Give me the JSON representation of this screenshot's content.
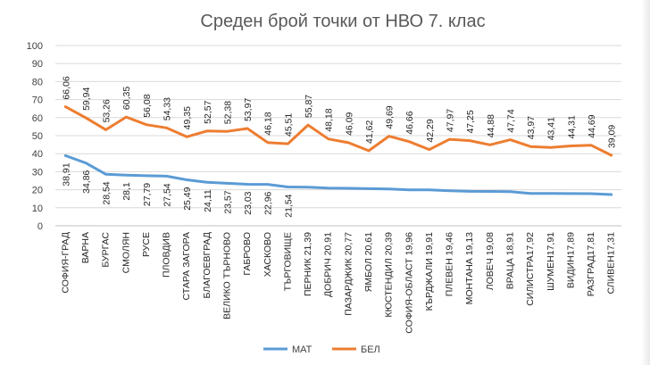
{
  "chart_data": {
    "type": "line",
    "title": "Среден брой точки от НВО 7. клас",
    "categories": [
      "СОФИЯ-ГРАД",
      "ВАРНА",
      "БУРГАС",
      "СМОЛЯН",
      "РУСЕ",
      "ПЛОВДИВ",
      "СТАРА ЗАГОРА",
      "БЛАГОЕВГРАД",
      "ВЕЛИКО ТЪРНОВО",
      "ГАБРОВО",
      "ХАСКОВО",
      "ТЪРГОВИЩЕ",
      "ПЕРНИК",
      "ДОБРИЧ",
      "ПАЗАРДЖИК",
      "ЯМБОЛ",
      "КЮСТЕНДИЛ",
      "СОФИЯ-ОБЛАСТ",
      "КЪРДЖАЛИ",
      "ПЛЕВЕН",
      "МОНТАНА",
      "ЛОВЕЧ",
      "ВРАЦА",
      "СИЛИСТРА",
      "ШУМЕН",
      "ВИДИН",
      "РАЗГРАД",
      "СЛИВЕН"
    ],
    "category_labels": [
      "СОФИЯ-ГРАД",
      "ВАРНА",
      "БУРГАС",
      "СМОЛЯН",
      "РУСЕ",
      "ПЛОВДИВ",
      "СТАРА ЗАГОРА",
      "БЛАГОЕВГРАД",
      "ВЕЛИКО ТЪРНОВО",
      "ГАБРОВО",
      "ХАСКОВО",
      "ТЪРГОВИЩЕ",
      "ПЕРНИК 21,39",
      "ДОБРИЧ 20,91",
      "ПАЗАРДЖИК 20,77",
      "ЯМБОЛ 20,61",
      "КЮСТЕНДИЛ 20,39",
      "СОФИЯ-ОБЛАСТ 19,96",
      "КЪРДЖАЛИ 19,91",
      "ПЛЕВЕН 19,46",
      "МОНТАНА 19,13",
      "ЛОВЕЧ 19,08",
      "ВРАЦА 18,91",
      "СИЛИСТРА17,92",
      "ШУМЕН17,91",
      "ВИДИН17,89",
      "РАЗГРАД17,81",
      "СЛИВЕН17,31"
    ],
    "series": [
      {
        "name": "МАТ",
        "color": "#5b9bd5",
        "values": [
          38.91,
          34.86,
          28.54,
          28.1,
          27.79,
          27.54,
          25.49,
          24.11,
          23.57,
          23.03,
          22.96,
          21.54,
          21.39,
          20.91,
          20.77,
          20.61,
          20.39,
          19.96,
          19.91,
          19.46,
          19.13,
          19.08,
          18.91,
          17.92,
          17.91,
          17.89,
          17.81,
          17.31
        ],
        "labels": [
          "38,91",
          "34,86",
          "28,54",
          "28,1",
          "27,79",
          "27,54",
          "25,49",
          "24,11",
          "23,57",
          "23,03",
          "22,96",
          "21,54"
        ]
      },
      {
        "name": "БЕЛ",
        "color": "#ed7d31",
        "values": [
          66.06,
          59.94,
          53.26,
          60.35,
          56.08,
          54.33,
          49.35,
          52.57,
          52.38,
          53.97,
          46.18,
          45.51,
          55.87,
          48.18,
          46.09,
          41.62,
          49.69,
          46.66,
          42.29,
          47.97,
          47.25,
          44.88,
          47.74,
          43.97,
          43.41,
          44.31,
          44.69,
          39.09
        ],
        "labels": [
          "66,06",
          "59,94",
          "53,26",
          "60,35",
          "56,08",
          "54,33",
          "49,35",
          "52,57",
          "52,38",
          "53,97",
          "46,18",
          "45,51",
          "55,87",
          "48,18",
          "46,09",
          "41,62",
          "49,69",
          "46,66",
          "42,29",
          "47,97",
          "47,25",
          "44,88",
          "47,74",
          "43,97",
          "43,41",
          "44,31",
          "44,69",
          "39,09"
        ]
      }
    ],
    "ylim": [
      0,
      100
    ],
    "yticks": [
      0,
      10,
      20,
      30,
      40,
      50,
      60,
      70,
      80,
      90,
      100
    ],
    "grid": true,
    "legend": "bottom"
  }
}
